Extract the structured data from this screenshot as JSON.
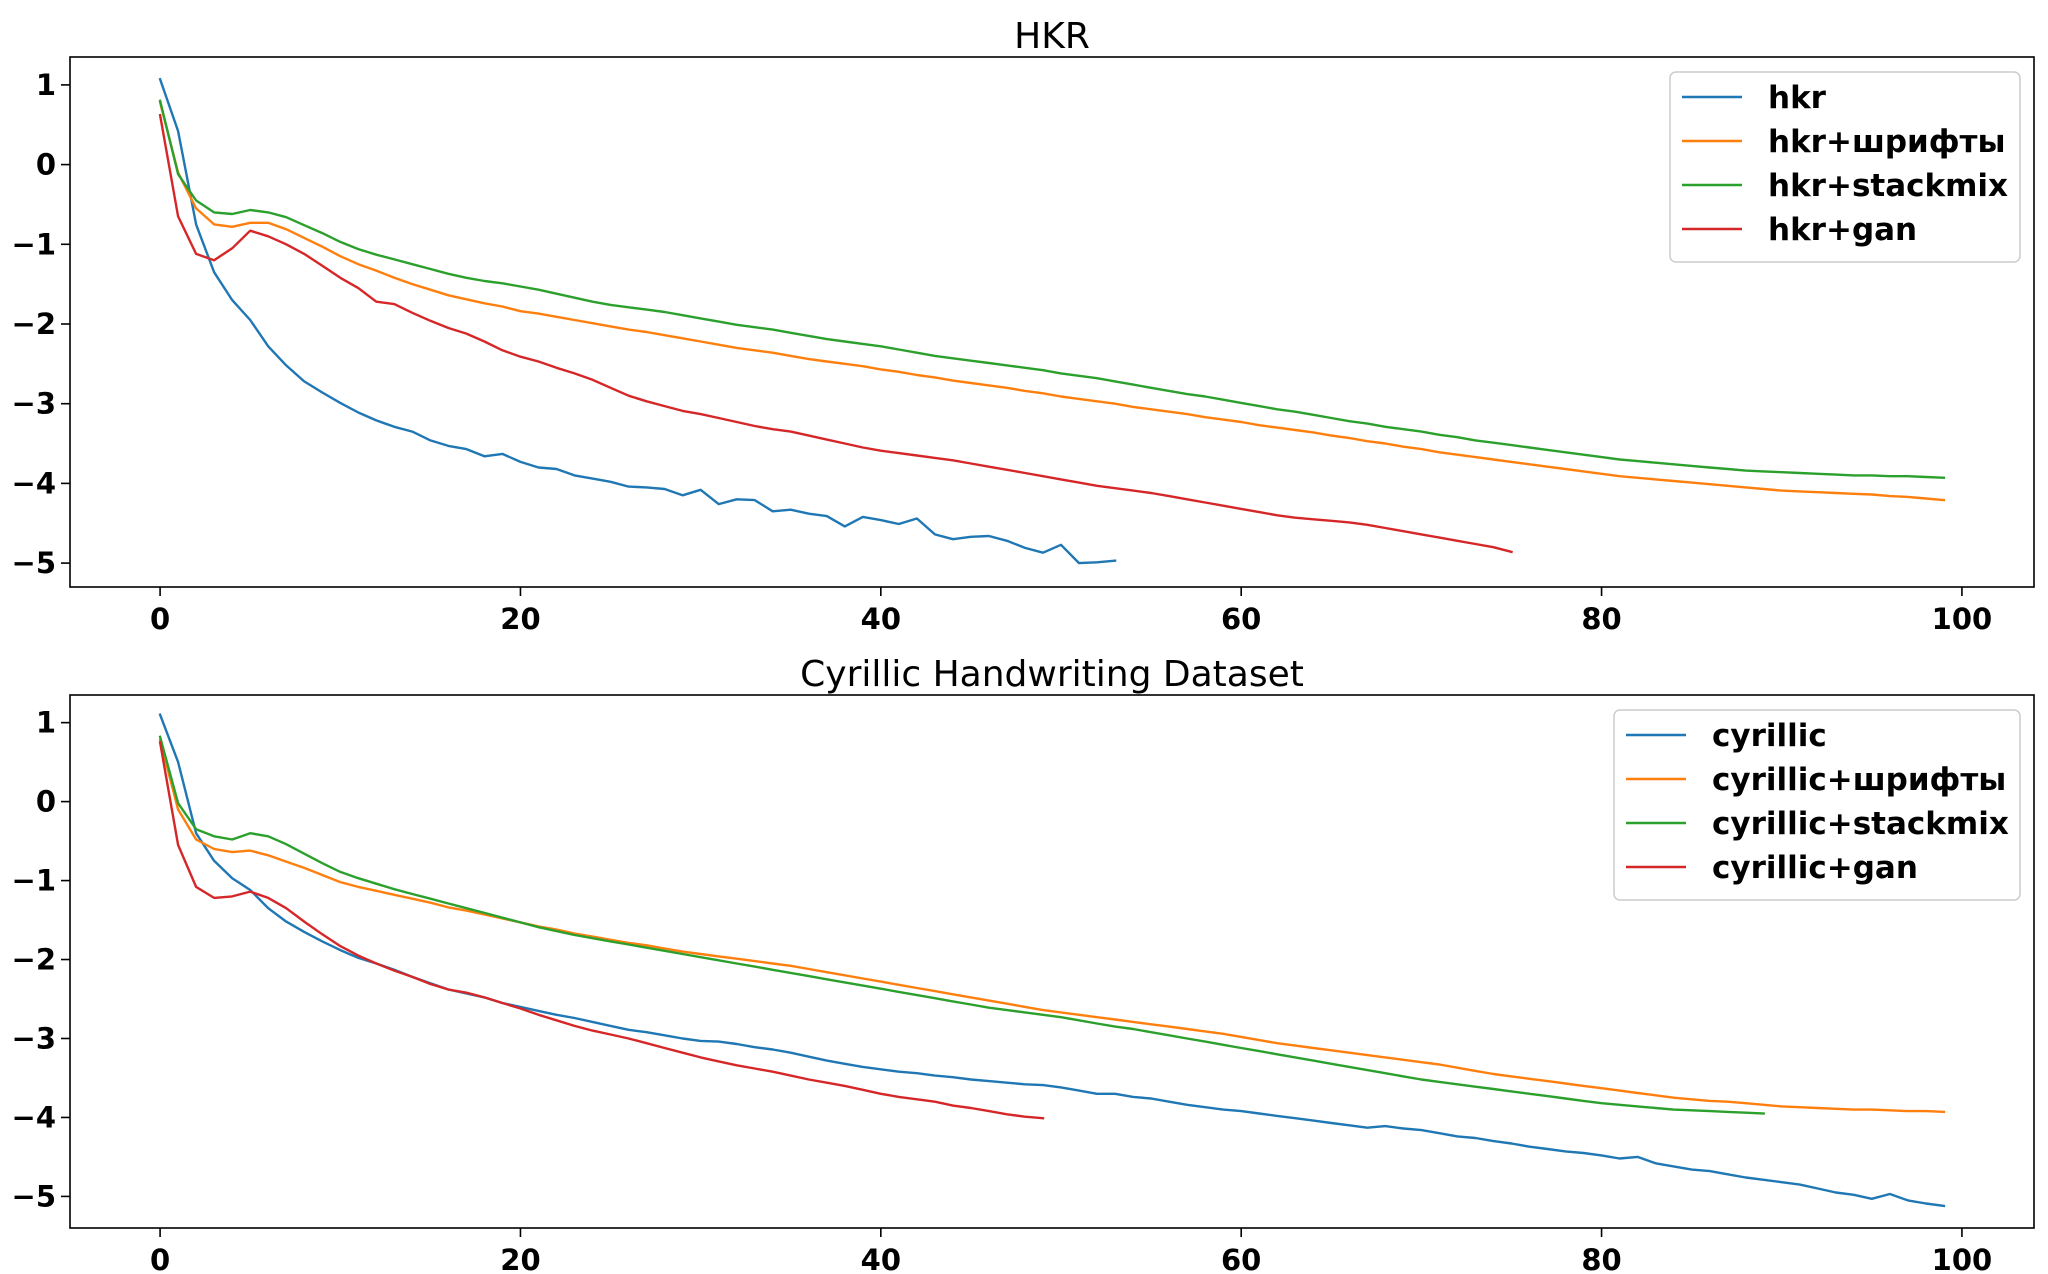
{
  "colors": {
    "blue": "#1f77b4",
    "orange": "#ff7f0e",
    "green": "#2ca02c",
    "red": "#d62728"
  },
  "chart_data": [
    {
      "type": "line",
      "title": "HKR",
      "xlabel": "",
      "ylabel": "",
      "xlim": [
        -5,
        104
      ],
      "ylim": [
        -5.3,
        1.35
      ],
      "xticks": [
        0,
        20,
        40,
        60,
        80,
        100
      ],
      "yticks": [
        1,
        0,
        -1,
        -2,
        -3,
        -4,
        -5
      ],
      "legend_position": "top-right",
      "grid": false,
      "series": [
        {
          "name": "hkr",
          "color": "#1f77b4",
          "start": 0,
          "values": [
            1.07,
            0.42,
            -0.75,
            -1.35,
            -1.7,
            -1.95,
            -2.28,
            -2.52,
            -2.72,
            -2.86,
            -2.99,
            -3.11,
            -3.21,
            -3.29,
            -3.35,
            -3.46,
            -3.53,
            -3.57,
            -3.66,
            -3.63,
            -3.73,
            -3.8,
            -3.82,
            -3.9,
            -3.94,
            -3.98,
            -4.04,
            -4.05,
            -4.07,
            -4.15,
            -4.08,
            -4.26,
            -4.2,
            -4.21,
            -4.35,
            -4.33,
            -4.38,
            -4.41,
            -4.54,
            -4.42,
            -4.46,
            -4.51,
            -4.44,
            -4.64,
            -4.7,
            -4.67,
            -4.66,
            -4.72,
            -4.81,
            -4.87,
            -4.77,
            -5.0,
            -4.99,
            -4.97
          ]
        },
        {
          "name": "hkr+шрифты",
          "color": "#ff7f0e",
          "start": 0,
          "values": [
            0.78,
            -0.1,
            -0.55,
            -0.75,
            -0.78,
            -0.73,
            -0.73,
            -0.81,
            -0.92,
            -1.03,
            -1.15,
            -1.25,
            -1.33,
            -1.42,
            -1.5,
            -1.57,
            -1.64,
            -1.69,
            -1.74,
            -1.78,
            -1.84,
            -1.87,
            -1.91,
            -1.95,
            -1.99,
            -2.03,
            -2.07,
            -2.1,
            -2.14,
            -2.18,
            -2.22,
            -2.26,
            -2.3,
            -2.33,
            -2.36,
            -2.4,
            -2.44,
            -2.47,
            -2.5,
            -2.53,
            -2.57,
            -2.6,
            -2.64,
            -2.67,
            -2.71,
            -2.74,
            -2.77,
            -2.8,
            -2.84,
            -2.87,
            -2.91,
            -2.94,
            -2.97,
            -3.0,
            -3.04,
            -3.07,
            -3.1,
            -3.13,
            -3.17,
            -3.2,
            -3.23,
            -3.27,
            -3.3,
            -3.33,
            -3.36,
            -3.4,
            -3.43,
            -3.47,
            -3.5,
            -3.54,
            -3.57,
            -3.61,
            -3.64,
            -3.67,
            -3.7,
            -3.73,
            -3.76,
            -3.79,
            -3.82,
            -3.85,
            -3.88,
            -3.91,
            -3.93,
            -3.95,
            -3.97,
            -3.99,
            -4.01,
            -4.03,
            -4.05,
            -4.07,
            -4.09,
            -4.1,
            -4.11,
            -4.12,
            -4.13,
            -4.14,
            -4.16,
            -4.17,
            -4.19,
            -4.21
          ]
        },
        {
          "name": "hkr+stackmix",
          "color": "#2ca02c",
          "start": 0,
          "values": [
            0.8,
            -0.12,
            -0.45,
            -0.6,
            -0.62,
            -0.57,
            -0.6,
            -0.66,
            -0.76,
            -0.86,
            -0.97,
            -1.06,
            -1.13,
            -1.19,
            -1.25,
            -1.31,
            -1.37,
            -1.42,
            -1.46,
            -1.49,
            -1.53,
            -1.57,
            -1.62,
            -1.67,
            -1.72,
            -1.76,
            -1.79,
            -1.82,
            -1.85,
            -1.89,
            -1.93,
            -1.97,
            -2.01,
            -2.04,
            -2.07,
            -2.11,
            -2.15,
            -2.19,
            -2.22,
            -2.25,
            -2.28,
            -2.32,
            -2.36,
            -2.4,
            -2.43,
            -2.46,
            -2.49,
            -2.52,
            -2.55,
            -2.58,
            -2.62,
            -2.65,
            -2.68,
            -2.72,
            -2.76,
            -2.8,
            -2.84,
            -2.88,
            -2.91,
            -2.95,
            -2.99,
            -3.03,
            -3.07,
            -3.1,
            -3.14,
            -3.18,
            -3.22,
            -3.25,
            -3.29,
            -3.32,
            -3.35,
            -3.39,
            -3.42,
            -3.46,
            -3.49,
            -3.52,
            -3.55,
            -3.58,
            -3.61,
            -3.64,
            -3.67,
            -3.7,
            -3.72,
            -3.74,
            -3.76,
            -3.78,
            -3.8,
            -3.82,
            -3.84,
            -3.85,
            -3.86,
            -3.87,
            -3.88,
            -3.89,
            -3.9,
            -3.9,
            -3.91,
            -3.91,
            -3.92,
            -3.93
          ]
        },
        {
          "name": "hkr+gan",
          "color": "#d62728",
          "start": 0,
          "values": [
            0.62,
            -0.65,
            -1.12,
            -1.2,
            -1.05,
            -0.83,
            -0.9,
            -1.0,
            -1.12,
            -1.27,
            -1.42,
            -1.55,
            -1.72,
            -1.75,
            -1.86,
            -1.96,
            -2.05,
            -2.12,
            -2.22,
            -2.33,
            -2.41,
            -2.47,
            -2.55,
            -2.62,
            -2.7,
            -2.8,
            -2.9,
            -2.97,
            -3.03,
            -3.09,
            -3.13,
            -3.18,
            -3.23,
            -3.28,
            -3.32,
            -3.35,
            -3.4,
            -3.45,
            -3.5,
            -3.55,
            -3.59,
            -3.62,
            -3.65,
            -3.68,
            -3.71,
            -3.75,
            -3.79,
            -3.83,
            -3.87,
            -3.91,
            -3.95,
            -3.99,
            -4.03,
            -4.06,
            -4.09,
            -4.12,
            -4.16,
            -4.2,
            -4.24,
            -4.28,
            -4.32,
            -4.36,
            -4.4,
            -4.43,
            -4.45,
            -4.47,
            -4.49,
            -4.52,
            -4.56,
            -4.6,
            -4.64,
            -4.68,
            -4.72,
            -4.76,
            -4.8,
            -4.86
          ]
        }
      ]
    },
    {
      "type": "line",
      "title": "Cyrillic Handwriting Dataset",
      "xlabel": "",
      "ylabel": "",
      "xlim": [
        -5,
        104
      ],
      "ylim": [
        -5.4,
        1.35
      ],
      "xticks": [
        0,
        20,
        40,
        60,
        80,
        100
      ],
      "yticks": [
        1,
        0,
        -1,
        -2,
        -3,
        -4,
        -5
      ],
      "legend_position": "top-right",
      "grid": false,
      "series": [
        {
          "name": "cyrillic",
          "color": "#1f77b4",
          "start": 0,
          "values": [
            1.1,
            0.5,
            -0.4,
            -0.75,
            -0.97,
            -1.12,
            -1.35,
            -1.52,
            -1.65,
            -1.77,
            -1.88,
            -1.98,
            -2.05,
            -2.13,
            -2.22,
            -2.3,
            -2.38,
            -2.43,
            -2.48,
            -2.55,
            -2.6,
            -2.65,
            -2.7,
            -2.74,
            -2.79,
            -2.84,
            -2.89,
            -2.92,
            -2.96,
            -3.0,
            -3.03,
            -3.04,
            -3.07,
            -3.11,
            -3.14,
            -3.18,
            -3.23,
            -3.28,
            -3.32,
            -3.36,
            -3.39,
            -3.42,
            -3.44,
            -3.47,
            -3.49,
            -3.52,
            -3.54,
            -3.56,
            -3.58,
            -3.59,
            -3.62,
            -3.66,
            -3.7,
            -3.7,
            -3.74,
            -3.76,
            -3.8,
            -3.84,
            -3.87,
            -3.9,
            -3.92,
            -3.95,
            -3.98,
            -4.01,
            -4.04,
            -4.07,
            -4.1,
            -4.13,
            -4.11,
            -4.14,
            -4.16,
            -4.2,
            -4.24,
            -4.26,
            -4.3,
            -4.33,
            -4.37,
            -4.4,
            -4.43,
            -4.45,
            -4.48,
            -4.52,
            -4.5,
            -4.58,
            -4.62,
            -4.66,
            -4.68,
            -4.72,
            -4.76,
            -4.79,
            -4.82,
            -4.85,
            -4.9,
            -4.95,
            -4.98,
            -5.03,
            -4.97,
            -5.05,
            -5.09,
            -5.12
          ]
        },
        {
          "name": "cyrillic+шрифты",
          "color": "#ff7f0e",
          "start": 0,
          "values": [
            0.78,
            -0.1,
            -0.48,
            -0.6,
            -0.64,
            -0.62,
            -0.68,
            -0.76,
            -0.84,
            -0.93,
            -1.02,
            -1.08,
            -1.13,
            -1.18,
            -1.23,
            -1.28,
            -1.34,
            -1.38,
            -1.43,
            -1.48,
            -1.53,
            -1.58,
            -1.62,
            -1.67,
            -1.71,
            -1.75,
            -1.79,
            -1.82,
            -1.86,
            -1.9,
            -1.93,
            -1.96,
            -1.99,
            -2.02,
            -2.05,
            -2.08,
            -2.12,
            -2.16,
            -2.2,
            -2.24,
            -2.28,
            -2.32,
            -2.36,
            -2.4,
            -2.44,
            -2.48,
            -2.52,
            -2.56,
            -2.6,
            -2.64,
            -2.67,
            -2.7,
            -2.73,
            -2.76,
            -2.79,
            -2.82,
            -2.85,
            -2.88,
            -2.91,
            -2.94,
            -2.98,
            -3.02,
            -3.06,
            -3.09,
            -3.12,
            -3.15,
            -3.18,
            -3.21,
            -3.24,
            -3.27,
            -3.3,
            -3.33,
            -3.37,
            -3.41,
            -3.45,
            -3.48,
            -3.51,
            -3.54,
            -3.57,
            -3.6,
            -3.63,
            -3.66,
            -3.69,
            -3.72,
            -3.75,
            -3.77,
            -3.79,
            -3.8,
            -3.82,
            -3.84,
            -3.86,
            -3.87,
            -3.88,
            -3.89,
            -3.9,
            -3.9,
            -3.91,
            -3.92,
            -3.92,
            -3.93
          ]
        },
        {
          "name": "cyrillic+stackmix",
          "color": "#2ca02c",
          "start": 0,
          "values": [
            0.82,
            -0.02,
            -0.35,
            -0.44,
            -0.48,
            -0.4,
            -0.44,
            -0.54,
            -0.66,
            -0.78,
            -0.89,
            -0.97,
            -1.04,
            -1.11,
            -1.17,
            -1.23,
            -1.29,
            -1.35,
            -1.41,
            -1.47,
            -1.53,
            -1.59,
            -1.64,
            -1.69,
            -1.73,
            -1.77,
            -1.81,
            -1.85,
            -1.89,
            -1.93,
            -1.97,
            -2.01,
            -2.05,
            -2.09,
            -2.13,
            -2.17,
            -2.21,
            -2.25,
            -2.29,
            -2.33,
            -2.37,
            -2.41,
            -2.45,
            -2.49,
            -2.53,
            -2.57,
            -2.61,
            -2.64,
            -2.67,
            -2.7,
            -2.73,
            -2.77,
            -2.81,
            -2.85,
            -2.88,
            -2.92,
            -2.96,
            -3.0,
            -3.04,
            -3.08,
            -3.12,
            -3.16,
            -3.2,
            -3.24,
            -3.28,
            -3.32,
            -3.36,
            -3.4,
            -3.44,
            -3.48,
            -3.52,
            -3.55,
            -3.58,
            -3.61,
            -3.64,
            -3.67,
            -3.7,
            -3.73,
            -3.76,
            -3.79,
            -3.82,
            -3.84,
            -3.86,
            -3.88,
            -3.9,
            -3.91,
            -3.92,
            -3.93,
            -3.94,
            -3.95
          ]
        },
        {
          "name": "cyrillic+gan",
          "color": "#d62728",
          "start": 0,
          "values": [
            0.75,
            -0.55,
            -1.08,
            -1.22,
            -1.2,
            -1.14,
            -1.22,
            -1.35,
            -1.52,
            -1.68,
            -1.83,
            -1.95,
            -2.05,
            -2.14,
            -2.22,
            -2.31,
            -2.38,
            -2.42,
            -2.48,
            -2.55,
            -2.62,
            -2.7,
            -2.77,
            -2.84,
            -2.9,
            -2.95,
            -3.0,
            -3.06,
            -3.12,
            -3.18,
            -3.24,
            -3.29,
            -3.34,
            -3.38,
            -3.42,
            -3.47,
            -3.52,
            -3.56,
            -3.6,
            -3.65,
            -3.7,
            -3.74,
            -3.77,
            -3.8,
            -3.85,
            -3.88,
            -3.92,
            -3.96,
            -3.99,
            -4.01
          ]
        }
      ]
    }
  ]
}
